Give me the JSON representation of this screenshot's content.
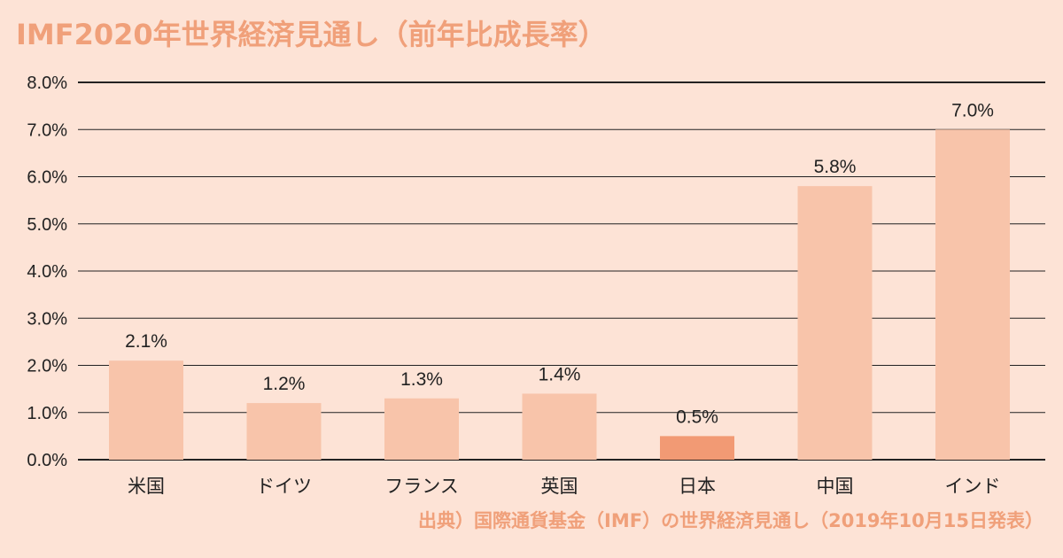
{
  "title": "IMF2020年世界経済見通し（前年比成長率）",
  "source": "出典）国際通貨基金（IMF）の世界経済見通し（2019年10月15日発表）",
  "colors": {
    "background": "#fde3d6",
    "bar": "#f8c4aa",
    "highlight_bar": "#f29a74",
    "accent_text": "#f0a07a",
    "text": "#222222"
  },
  "chart_data": {
    "type": "bar",
    "categories": [
      "米国",
      "ドイツ",
      "フランス",
      "英国",
      "日本",
      "中国",
      "インド"
    ],
    "values": [
      2.1,
      1.2,
      1.3,
      1.4,
      0.5,
      5.8,
      7.0
    ],
    "data_labels": [
      "2.1%",
      "1.2%",
      "1.3%",
      "1.4%",
      "0.5%",
      "5.8%",
      "7.0%"
    ],
    "highlight_category": "日本",
    "ylim": [
      0,
      8
    ],
    "yticks": [
      0,
      1,
      2,
      3,
      4,
      5,
      6,
      7,
      8
    ],
    "ytick_labels": [
      "0.0%",
      "1.0%",
      "2.0%",
      "3.0%",
      "4.0%",
      "5.0%",
      "6.0%",
      "7.0%",
      "8.0%"
    ],
    "grid": true,
    "xlabel": "",
    "ylabel": ""
  }
}
